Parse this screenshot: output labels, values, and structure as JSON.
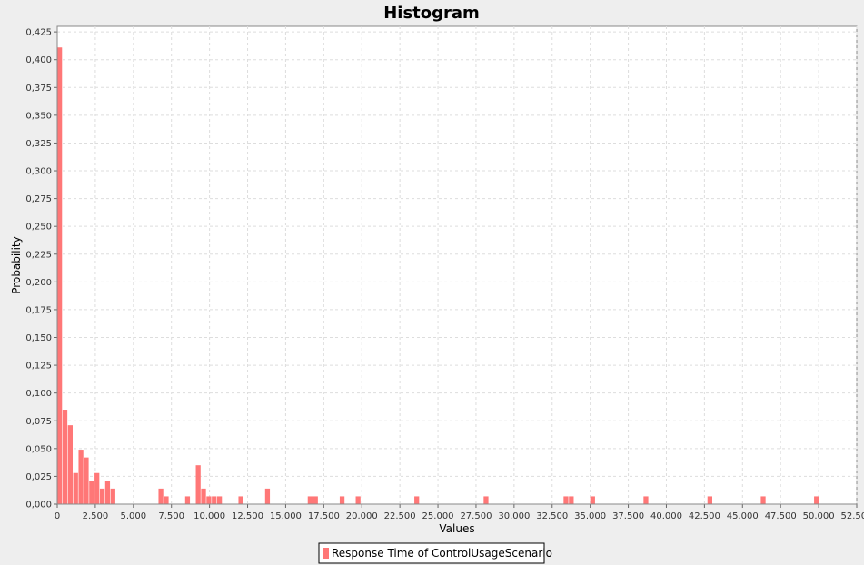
{
  "chart_data": {
    "type": "bar",
    "title": "Histogram",
    "xlabel": "Values",
    "ylabel": "Probability",
    "xlim": [
      0,
      52500
    ],
    "ylim": [
      0,
      0.43
    ],
    "bin_width": 350,
    "x_ticks": [
      "0",
      "2.500",
      "5.000",
      "7.500",
      "10.000",
      "12.500",
      "15.000",
      "17.500",
      "20.000",
      "22.500",
      "25.000",
      "27.500",
      "30.000",
      "32.500",
      "35.000",
      "37.500",
      "40.000",
      "42.500",
      "45.000",
      "47.500",
      "50.000",
      "52.500"
    ],
    "y_ticks": [
      "0,000",
      "0,025",
      "0,050",
      "0,075",
      "0,100",
      "0,125",
      "0,150",
      "0,175",
      "0,200",
      "0,225",
      "0,250",
      "0,275",
      "0,300",
      "0,325",
      "0,350",
      "0,375",
      "0,400",
      "0,425"
    ],
    "grid": true,
    "legend_position": "bottom-center",
    "series": [
      {
        "name": "Response Time of ControlUsageScenario",
        "color": "#ff7777",
        "bins": [
          {
            "x": 175,
            "y": 0.411
          },
          {
            "x": 525,
            "y": 0.085
          },
          {
            "x": 875,
            "y": 0.071
          },
          {
            "x": 1225,
            "y": 0.028
          },
          {
            "x": 1575,
            "y": 0.049
          },
          {
            "x": 1925,
            "y": 0.042
          },
          {
            "x": 2275,
            "y": 0.021
          },
          {
            "x": 2625,
            "y": 0.028
          },
          {
            "x": 2975,
            "y": 0.014
          },
          {
            "x": 3325,
            "y": 0.021
          },
          {
            "x": 3675,
            "y": 0.014
          },
          {
            "x": 6825,
            "y": 0.014
          },
          {
            "x": 7175,
            "y": 0.007
          },
          {
            "x": 8575,
            "y": 0.007
          },
          {
            "x": 9275,
            "y": 0.035
          },
          {
            "x": 9625,
            "y": 0.014
          },
          {
            "x": 9975,
            "y": 0.007
          },
          {
            "x": 10325,
            "y": 0.007
          },
          {
            "x": 10675,
            "y": 0.007
          },
          {
            "x": 12075,
            "y": 0.007
          },
          {
            "x": 13825,
            "y": 0.014
          },
          {
            "x": 16625,
            "y": 0.007
          },
          {
            "x": 16975,
            "y": 0.007
          },
          {
            "x": 18725,
            "y": 0.007
          },
          {
            "x": 19775,
            "y": 0.007
          },
          {
            "x": 23625,
            "y": 0.007
          },
          {
            "x": 28175,
            "y": 0.007
          },
          {
            "x": 33425,
            "y": 0.007
          },
          {
            "x": 33775,
            "y": 0.007
          },
          {
            "x": 35175,
            "y": 0.007
          },
          {
            "x": 38675,
            "y": 0.007
          },
          {
            "x": 42875,
            "y": 0.007
          },
          {
            "x": 46375,
            "y": 0.007
          },
          {
            "x": 49875,
            "y": 0.007
          }
        ]
      }
    ]
  }
}
